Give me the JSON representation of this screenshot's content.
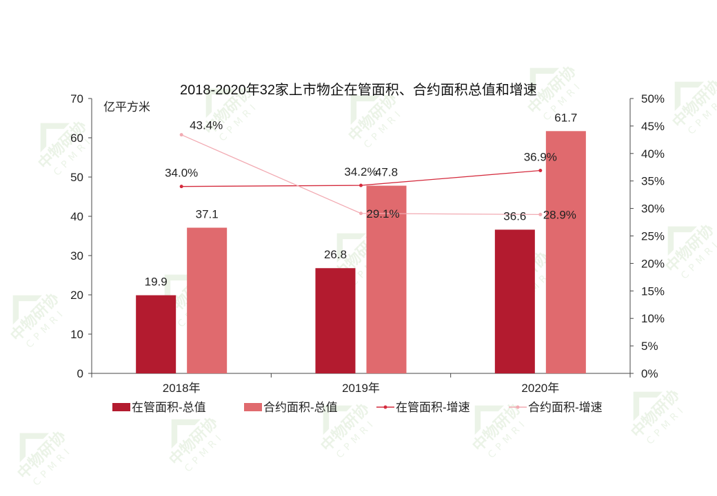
{
  "chart_data": {
    "type": "bar",
    "title": "2018-2020年32家上市物企在管面积、合约面积总值和增速",
    "y_unit_label": "亿平方米",
    "categories": [
      "2018年",
      "2019年",
      "2020年"
    ],
    "ylim": [
      0,
      70
    ],
    "y_ticks": [
      "0",
      "10",
      "20",
      "30",
      "40",
      "50",
      "60",
      "70"
    ],
    "y2lim": [
      0,
      50
    ],
    "y2_ticks": [
      "0%",
      "5%",
      "10%",
      "15%",
      "20%",
      "25%",
      "30%",
      "35%",
      "40%",
      "45%",
      "50%"
    ],
    "bar_series": [
      {
        "name": "在管面积-总值",
        "values": [
          19.9,
          26.8,
          36.6
        ],
        "labels": [
          "19.9",
          "26.8",
          "36.6"
        ],
        "color": "#b31b2f"
      },
      {
        "name": "合约面积-总值",
        "values": [
          37.1,
          47.8,
          61.7
        ],
        "labels": [
          "37.1",
          "47.8",
          "61.7"
        ],
        "color": "#e06a6e"
      }
    ],
    "line_series": [
      {
        "name": "在管面积-增速",
        "values": [
          34.0,
          34.2,
          36.9
        ],
        "labels": [
          "34.0%",
          "34.2%",
          "36.9%"
        ],
        "color": "#d42a3c"
      },
      {
        "name": "合约面积-增速",
        "values": [
          43.4,
          29.1,
          28.9
        ],
        "labels": [
          "43.4%",
          "29.1%",
          "28.9%"
        ],
        "color": "#f2aab2"
      }
    ],
    "legend_position": "bottom",
    "grid": false
  },
  "watermark": {
    "text": "中物研协",
    "sub": "CPMRI"
  }
}
